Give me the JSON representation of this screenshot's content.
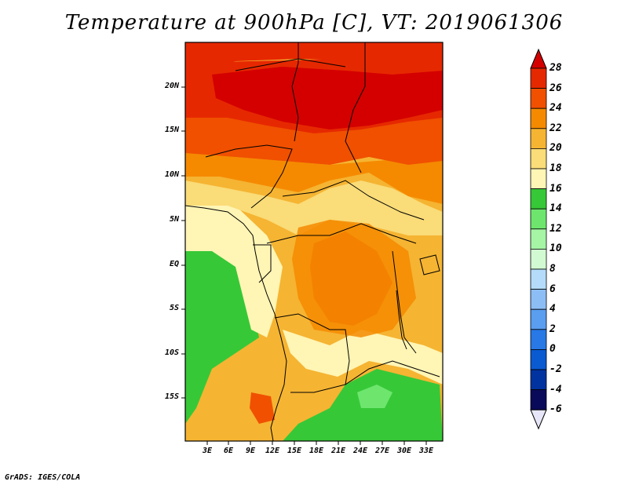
{
  "title": "Temperature at 900hPa [C], VT: 2019061306",
  "lat_labels": [
    "20N",
    "15N",
    "10N",
    "5N",
    "EQ",
    "5S",
    "10S",
    "15S"
  ],
  "lon_labels": [
    "3E",
    "6E",
    "9E",
    "12E",
    "15E",
    "18E",
    "21E",
    "24E",
    "27E",
    "30E",
    "33E"
  ],
  "colorbar": {
    "ticks": [
      "28",
      "26",
      "24",
      "22",
      "20",
      "18",
      "16",
      "14",
      "12",
      "10",
      "8",
      "6",
      "4",
      "2",
      "0",
      "-2",
      "-4",
      "-6"
    ],
    "colors": [
      "#d40000",
      "#e62800",
      "#f05000",
      "#f58a00",
      "#f5b432",
      "#fadc78",
      "#fff5b4",
      "#37c837",
      "#6ee66e",
      "#a5f5a5",
      "#d2fad2",
      "#b4dcfa",
      "#8cbef5",
      "#5a9ef0",
      "#2878e6",
      "#0a5ad2",
      "#0032a0",
      "#0a0a5a"
    ],
    "over_color": "#d40000",
    "under_color": "#e6e6f8"
  },
  "credit": "GrADS: IGES/COLA"
}
